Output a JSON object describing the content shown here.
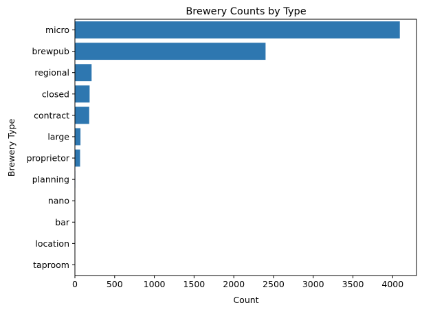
{
  "chart_data": {
    "type": "bar",
    "orientation": "horizontal",
    "title": "Brewery Counts by Type",
    "xlabel": "Count",
    "ylabel": "Brewery Type",
    "categories": [
      "micro",
      "brewpub",
      "regional",
      "closed",
      "contract",
      "large",
      "proprietor",
      "planning",
      "nano",
      "bar",
      "location",
      "taproom"
    ],
    "values": [
      4090,
      2400,
      210,
      185,
      180,
      70,
      65,
      5,
      3,
      2,
      1,
      1
    ],
    "xlim": [
      0,
      4300
    ],
    "xticks": [
      0,
      500,
      1000,
      1500,
      2000,
      2500,
      3000,
      3500,
      4000
    ],
    "grid": false,
    "bar_color": "#2e77b0"
  }
}
